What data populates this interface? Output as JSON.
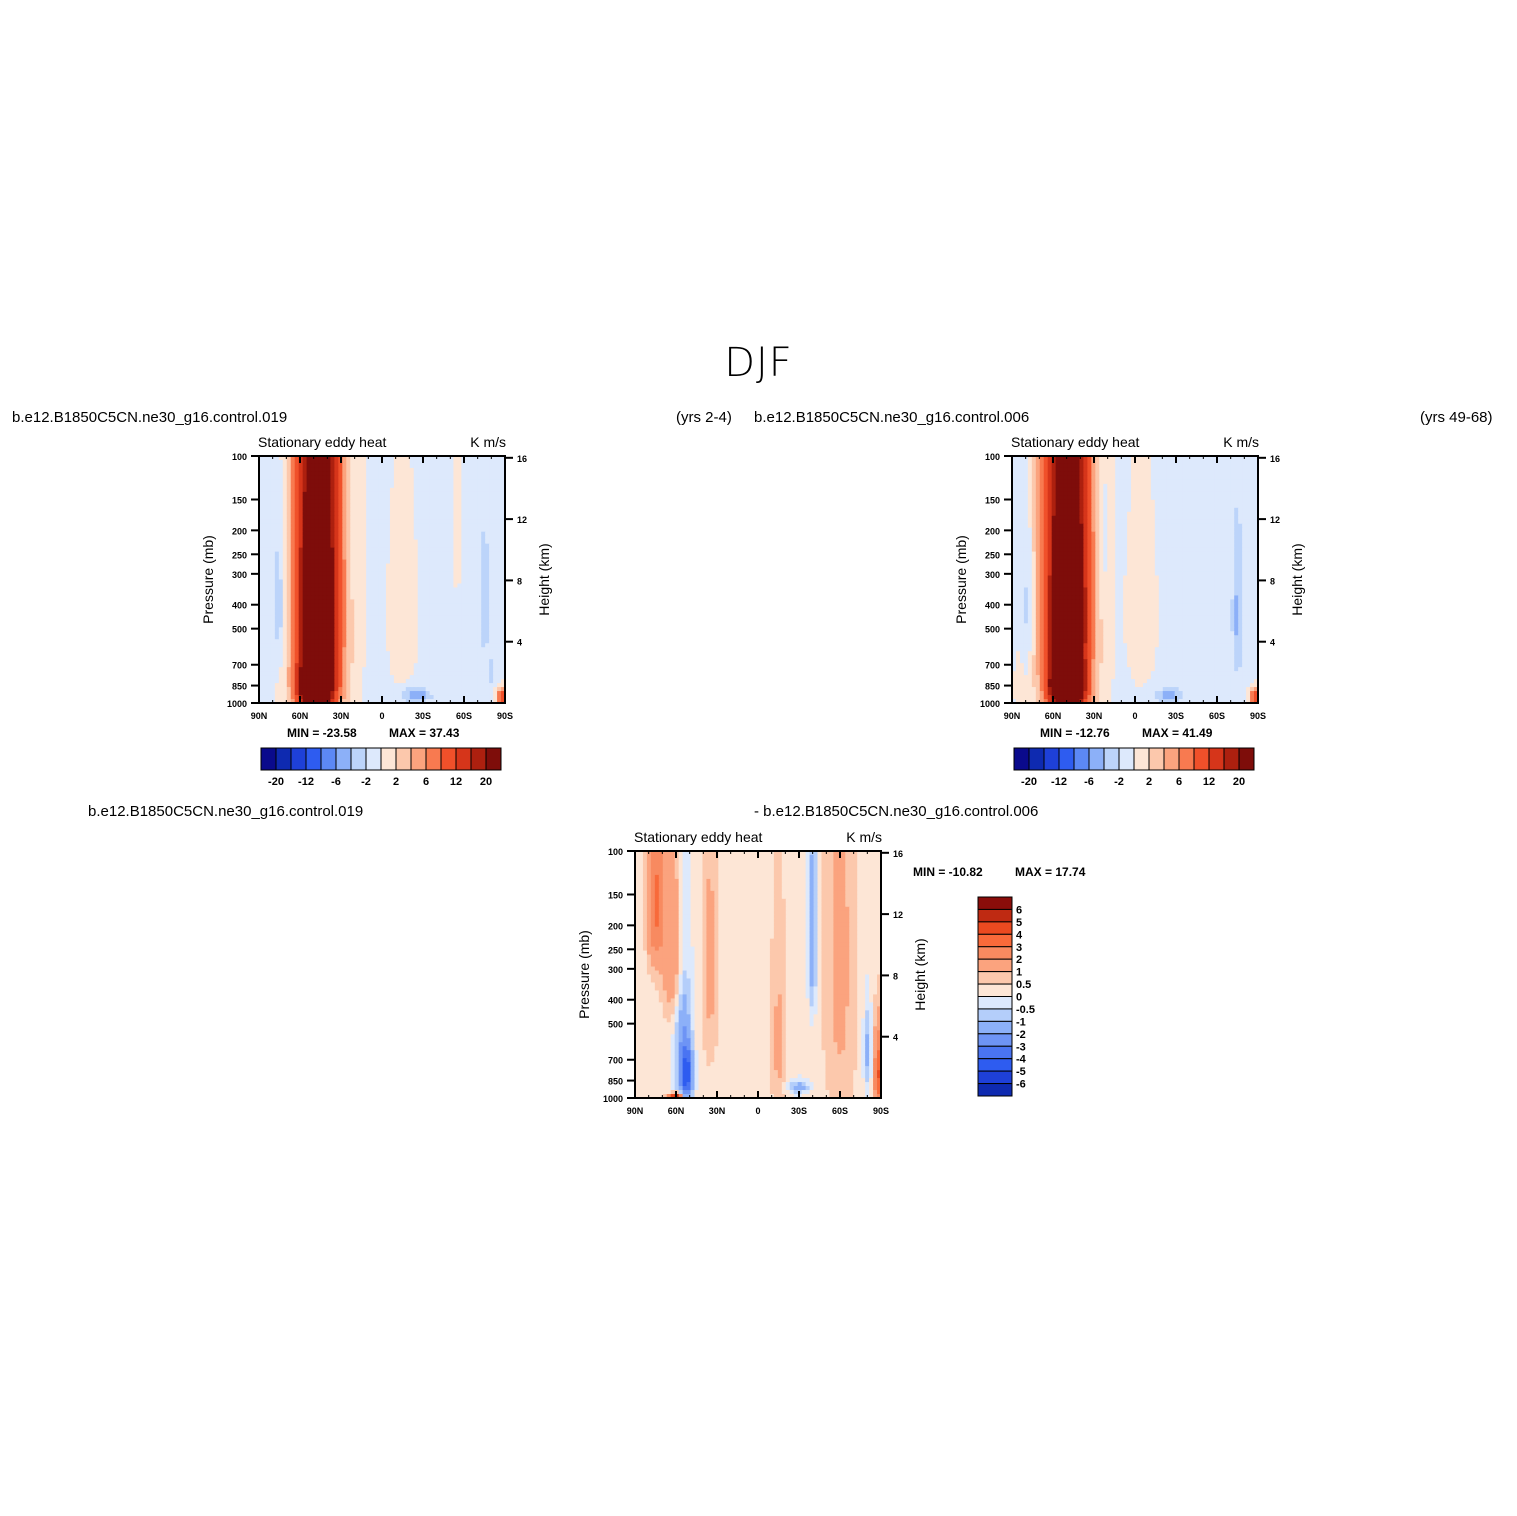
{
  "page": {
    "title": "DJF"
  },
  "header_texts": {
    "case1": "b.e12.B1850C5CN.ne30_g16.control.019",
    "yrs1": "(yrs 2-4)",
    "case2": "b.e12.B1850C5CN.ne30_g16.control.006",
    "yrs2": "(yrs 49-68)",
    "diff_left": "b.e12.B1850C5CN.ne30_g16.control.019",
    "diff_right": "- b.e12.B1850C5CN.ne30_g16.control.006"
  },
  "colors": {
    "abs_levels": [
      "#0a0a8c",
      "#0e2ab0",
      "#1e40d8",
      "#2e5cf0",
      "#5c88f5",
      "#8cb0f8",
      "#bcd4fa",
      "#dde9fc",
      "#fde6d6",
      "#fcc8ac",
      "#fba37e",
      "#f87a50",
      "#f0502a",
      "#d6351a",
      "#ad200f",
      "#7e0d0a"
    ],
    "diff_levels": [
      "#0a0a8c",
      "#0e2ab0",
      "#1e40d8",
      "#2e5cf0",
      "#4a74f2",
      "#6e94f5",
      "#8cb0f8",
      "#b4cefa",
      "#dde9fc",
      "#fde6d6",
      "#fcc8ac",
      "#fba37e",
      "#f88a60",
      "#f86a3a",
      "#ea4a20",
      "#bf2a12",
      "#8a0d0a"
    ]
  },
  "chart_data": [
    {
      "type": "heatmap",
      "title": "Stationary eddy heat",
      "units": "K m/s",
      "ylabel": "Pressure (mb)",
      "y2label": "Height (km)",
      "x_ticks": [
        "90N",
        "60N",
        "30N",
        "0",
        "30S",
        "60S",
        "90S"
      ],
      "y_ticks": [
        "100",
        "150",
        "200",
        "250",
        "300",
        "400",
        "500",
        "700",
        "850",
        "1000"
      ],
      "y2_ticks": [
        "16",
        "12",
        "8",
        "4"
      ],
      "min_label": "MIN = -23.58",
      "max_label": "MAX = 37.43",
      "colorbar_labels": [
        "-20",
        "-12",
        "-6",
        "-2",
        "2",
        "6",
        "12",
        "20"
      ],
      "blobs": [
        {
          "lat": 47,
          "p": 350,
          "w": 18,
          "h": 900,
          "v": 20
        },
        {
          "lat": 47,
          "p": 500,
          "w": 10,
          "h": 450,
          "v": 30
        },
        {
          "lat": 49,
          "p": 850,
          "w": 10,
          "h": 150,
          "v": 37
        },
        {
          "lat": 75,
          "p": 400,
          "w": 6,
          "h": 300,
          "v": -4
        },
        {
          "lat": 22,
          "p": 180,
          "w": 4,
          "h": 150,
          "v": -2
        },
        {
          "lat": -25,
          "p": 930,
          "w": 10,
          "h": 60,
          "v": -6
        },
        {
          "lat": -75,
          "p": 400,
          "w": 4,
          "h": 250,
          "v": -3
        },
        {
          "lat": -80,
          "p": 750,
          "w": 3,
          "h": 120,
          "v": -2
        },
        {
          "lat": -88,
          "p": 950,
          "w": 4,
          "h": 80,
          "v": 12
        },
        {
          "lat": -15,
          "p": 450,
          "w": 14,
          "h": 500,
          "v": 1
        },
        {
          "lat": -55,
          "p": 200,
          "w": 3,
          "h": 200,
          "v": 1
        }
      ]
    },
    {
      "type": "heatmap",
      "title": "Stationary eddy heat",
      "units": "K m/s",
      "ylabel": "Pressure (mb)",
      "y2label": "Height (km)",
      "x_ticks": [
        "90N",
        "60N",
        "30N",
        "0",
        "30S",
        "60S",
        "90S"
      ],
      "y_ticks": [
        "100",
        "150",
        "200",
        "250",
        "300",
        "400",
        "500",
        "700",
        "850",
        "1000"
      ],
      "y2_ticks": [
        "16",
        "12",
        "8",
        "4"
      ],
      "min_label": "MIN = -12.76",
      "max_label": "MAX = 41.49",
      "colorbar_labels": [
        "-20",
        "-12",
        "-6",
        "-2",
        "2",
        "6",
        "12",
        "20"
      ],
      "blobs": [
        {
          "lat": 50,
          "p": 350,
          "w": 18,
          "h": 900,
          "v": 20
        },
        {
          "lat": 49,
          "p": 500,
          "w": 10,
          "h": 450,
          "v": 30
        },
        {
          "lat": 50,
          "p": 850,
          "w": 10,
          "h": 150,
          "v": 41
        },
        {
          "lat": 79,
          "p": 400,
          "w": 5,
          "h": 300,
          "v": -3
        },
        {
          "lat": 24,
          "p": 220,
          "w": 4,
          "h": 180,
          "v": -2
        },
        {
          "lat": -25,
          "p": 930,
          "w": 10,
          "h": 60,
          "v": -5
        },
        {
          "lat": -75,
          "p": 450,
          "w": 4,
          "h": 300,
          "v": -4
        },
        {
          "lat": -88,
          "p": 950,
          "w": 4,
          "h": 80,
          "v": 12
        },
        {
          "lat": -5,
          "p": 450,
          "w": 14,
          "h": 500,
          "v": 1
        },
        {
          "lat": 85,
          "p": 850,
          "w": 3,
          "h": 200,
          "v": 2
        }
      ]
    },
    {
      "type": "heatmap",
      "title": "Stationary eddy heat",
      "units": "K m/s",
      "ylabel": "Pressure (mb)",
      "y2label": "Height (km)",
      "x_ticks": [
        "90N",
        "60N",
        "30N",
        "0",
        "30S",
        "60S",
        "90S"
      ],
      "y_ticks": [
        "100",
        "150",
        "200",
        "250",
        "300",
        "400",
        "500",
        "700",
        "850",
        "1000"
      ],
      "y2_ticks": [
        "16",
        "12",
        "8",
        "4"
      ],
      "min_label": "MIN = -10.82",
      "max_label": "MAX = 17.74",
      "colorbar_labels": [
        "6",
        "5",
        "4",
        "3",
        "2",
        "1",
        "0.5",
        "0",
        "-0.5",
        "-1",
        "-2",
        "-3",
        "-4",
        "-5",
        "-6"
      ],
      "blobs": [
        {
          "lat": 75,
          "p": 160,
          "w": 6,
          "h": 120,
          "v": 3
        },
        {
          "lat": 62,
          "p": 250,
          "w": 8,
          "h": 200,
          "v": 2
        },
        {
          "lat": 55,
          "p": 600,
          "w": 6,
          "h": 500,
          "v": -2
        },
        {
          "lat": 52,
          "p": 800,
          "w": 4,
          "h": 200,
          "v": -4
        },
        {
          "lat": 60,
          "p": 985,
          "w": 5,
          "h": 30,
          "v": 6
        },
        {
          "lat": 35,
          "p": 300,
          "w": 6,
          "h": 400,
          "v": 1
        },
        {
          "lat": -40,
          "p": 230,
          "w": 3,
          "h": 200,
          "v": -2
        },
        {
          "lat": -15,
          "p": 600,
          "w": 6,
          "h": 500,
          "v": 1
        },
        {
          "lat": -60,
          "p": 300,
          "w": 12,
          "h": 800,
          "v": 1
        },
        {
          "lat": -80,
          "p": 650,
          "w": 3,
          "h": 250,
          "v": -1.5
        },
        {
          "lat": -88,
          "p": 800,
          "w": 3,
          "h": 300,
          "v": 4
        },
        {
          "lat": -30,
          "p": 900,
          "w": 8,
          "h": 60,
          "v": -1.5
        }
      ]
    }
  ]
}
